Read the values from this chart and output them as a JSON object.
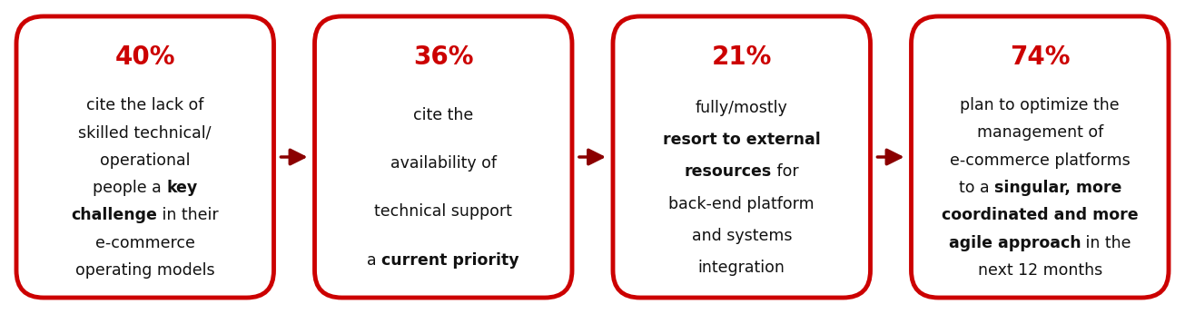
{
  "bg_color": "#ffffff",
  "border_color": "#cc0000",
  "arrow_color": "#8b0000",
  "red_text_color": "#cc0000",
  "black_text_color": "#111111",
  "boxes": [
    {
      "pct": "40%",
      "raw_lines": [
        "cite the lack of",
        "skilled technical/",
        "operational",
        "people a **key**",
        "**challenge** in their",
        "e-commerce",
        "operating models"
      ]
    },
    {
      "pct": "36%",
      "raw_lines": [
        "cite the",
        "availability of",
        "technical support",
        "a **current priority**"
      ]
    },
    {
      "pct": "21%",
      "raw_lines": [
        "fully/mostly",
        "**resort to external**",
        "**resources** for",
        "back-end platform",
        "and systems",
        "integration"
      ]
    },
    {
      "pct": "74%",
      "raw_lines": [
        "plan to optimize the",
        "management of",
        "e-commerce platforms",
        "to a **singular, more**",
        "**coordinated and more**",
        "**agile approach** in the",
        "next 12 months"
      ]
    }
  ],
  "border_linewidth": 3.5,
  "pct_fontsize": 20,
  "body_fontsize": 12.5
}
